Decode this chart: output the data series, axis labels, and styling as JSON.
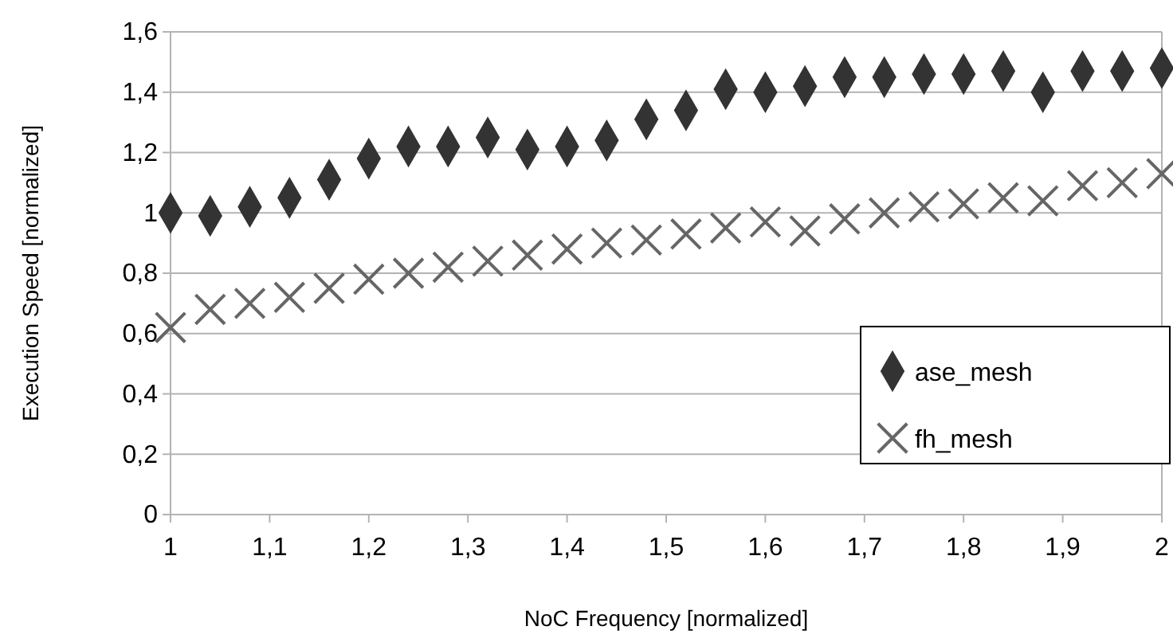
{
  "chart_data": {
    "type": "scatter",
    "xlabel": "NoC Frequency [normalized]",
    "ylabel": "Execution Speed [normalized]",
    "x": [
      1,
      1.04,
      1.08,
      1.12,
      1.16,
      1.2,
      1.24,
      1.28,
      1.32,
      1.36,
      1.4,
      1.44,
      1.48,
      1.52,
      1.56,
      1.6,
      1.64,
      1.68,
      1.72,
      1.76,
      1.8,
      1.84,
      1.88,
      1.92,
      1.96,
      2
    ],
    "series": [
      {
        "name": "ase_mesh",
        "color": "#333333",
        "marker": "diamond",
        "values": [
          1.0,
          0.99,
          1.02,
          1.05,
          1.11,
          1.18,
          1.22,
          1.22,
          1.25,
          1.21,
          1.22,
          1.24,
          1.31,
          1.34,
          1.41,
          1.4,
          1.42,
          1.45,
          1.45,
          1.46,
          1.46,
          1.47,
          1.4,
          1.47,
          1.47,
          1.48
        ]
      },
      {
        "name": "fh_mesh",
        "color": "#666666",
        "marker": "cross",
        "values": [
          0.62,
          0.68,
          0.7,
          0.72,
          0.75,
          0.78,
          0.8,
          0.82,
          0.84,
          0.86,
          0.88,
          0.9,
          0.91,
          0.93,
          0.95,
          0.97,
          0.94,
          0.98,
          1.0,
          1.02,
          1.03,
          1.05,
          1.04,
          1.09,
          1.1,
          1.13
        ]
      }
    ],
    "xlim": [
      1,
      2
    ],
    "xticks": [
      1,
      {
        "value": 1.1,
        "label": "1,1"
      },
      {
        "value": 1.2,
        "label": "1,2"
      },
      {
        "value": 1.3,
        "label": "1,3"
      },
      {
        "value": 1.4,
        "label": "1,4"
      },
      {
        "value": 1.5,
        "label": "1,5"
      },
      {
        "value": 1.6,
        "label": "1,6"
      },
      {
        "value": 1.7,
        "label": "1,7"
      },
      {
        "value": 1.8,
        "label": "1,8"
      },
      {
        "value": 1.9,
        "label": "1,9"
      },
      2
    ],
    "ylim": [
      0,
      1.6
    ],
    "yticks": [
      0,
      {
        "value": 0.2,
        "label": "0,2"
      },
      {
        "value": 0.4,
        "label": "0,4"
      },
      {
        "value": 0.6,
        "label": "0,6"
      },
      {
        "value": 0.8,
        "label": "0,8"
      },
      1,
      {
        "value": 1.2,
        "label": "1,2"
      },
      {
        "value": 1.4,
        "label": "1,4"
      },
      {
        "value": 1.6,
        "label": "1,6"
      }
    ],
    "grid": "y",
    "legend": "right"
  }
}
